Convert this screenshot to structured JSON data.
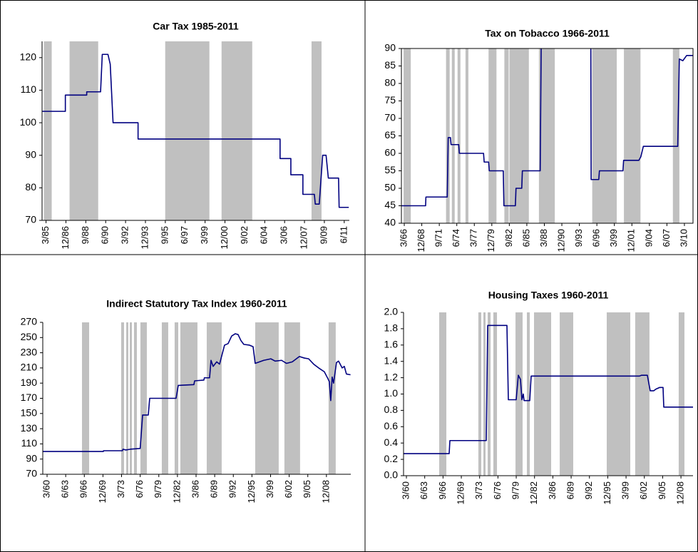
{
  "chart_data": [
    {
      "type": "line",
      "title": "Car Tax 1985-2011",
      "frame": false,
      "shade_color": "#c0c0c0",
      "xlim": [
        1984.9,
        2011.95
      ],
      "ylim": [
        70,
        125
      ],
      "yticks": [
        70,
        80,
        90,
        100,
        110,
        120
      ],
      "xticks": [
        {
          "value": 1985.25,
          "label": "3/85"
        },
        {
          "value": 1987,
          "label": "12/86"
        },
        {
          "value": 1988.75,
          "label": "9/88"
        },
        {
          "value": 1990.5,
          "label": "6/90"
        },
        {
          "value": 1992.25,
          "label": "3/92"
        },
        {
          "value": 1994,
          "label": "12/93"
        },
        {
          "value": 1995.75,
          "label": "9/95"
        },
        {
          "value": 1997.5,
          "label": "6/97"
        },
        {
          "value": 1999.25,
          "label": "3/99"
        },
        {
          "value": 2001,
          "label": "12/00"
        },
        {
          "value": 2002.75,
          "label": "9/02"
        },
        {
          "value": 2004.5,
          "label": "6/04"
        },
        {
          "value": 2006.25,
          "label": "3/06"
        },
        {
          "value": 2008,
          "label": "12/07"
        },
        {
          "value": 2009.75,
          "label": "9/09"
        },
        {
          "value": 2011.5,
          "label": "6/11"
        }
      ],
      "shaded": [
        [
          1985.06,
          1985.75
        ],
        [
          1987.32,
          1989.84
        ],
        [
          1995.74,
          1999.63
        ],
        [
          2000.7,
          2003.4
        ],
        [
          2008.62,
          2009.5
        ]
      ],
      "series": [
        {
          "color": "#000080",
          "x": [
            1984.9,
            1986.95,
            1986.95,
            1988.83,
            1988.83,
            1990.05,
            1990.2,
            1990.7,
            1990.9,
            1991.15,
            1993.35,
            1993.35,
            2005.85,
            2005.85,
            2006.8,
            2006.8,
            2007.86,
            2007.86,
            2008.87,
            2008.95,
            2009.3,
            2009.6,
            2009.9,
            2010.1,
            2011.0,
            2011.05,
            2011.9
          ],
          "values": [
            103.5,
            103.5,
            108.5,
            108.5,
            109.5,
            109.5,
            121,
            121,
            118,
            100,
            100,
            95,
            95,
            89,
            89,
            84,
            84,
            78,
            78,
            75,
            75,
            90,
            90,
            83,
            83,
            74,
            74
          ]
        }
      ]
    },
    {
      "type": "line",
      "title": "Tax on Tobacco 1966-2011",
      "frame": true,
      "shade_color": "#c0c0c0",
      "xlim": [
        1965.8,
        2011.6
      ],
      "ylim": [
        40,
        90
      ],
      "yticks": [
        40,
        45,
        50,
        55,
        60,
        65,
        70,
        75,
        80,
        85,
        90
      ],
      "xticks": [
        {
          "value": 1966.25,
          "label": "3/66"
        },
        {
          "value": 1969,
          "label": "12/68"
        },
        {
          "value": 1971.75,
          "label": "9/71"
        },
        {
          "value": 1974.5,
          "label": "6/74"
        },
        {
          "value": 1977.25,
          "label": "3/77"
        },
        {
          "value": 1980,
          "label": "12/79"
        },
        {
          "value": 1982.75,
          "label": "9/82"
        },
        {
          "value": 1985.5,
          "label": "6/85"
        },
        {
          "value": 1988.25,
          "label": "3/88"
        },
        {
          "value": 1991,
          "label": "12/90"
        },
        {
          "value": 1993.75,
          "label": "9/93"
        },
        {
          "value": 1996.5,
          "label": "6/96"
        },
        {
          "value": 1999.25,
          "label": "3/99"
        },
        {
          "value": 2002,
          "label": "12/01"
        },
        {
          "value": 2004.75,
          "label": "9/04"
        },
        {
          "value": 2007.5,
          "label": "6/07"
        },
        {
          "value": 2010.25,
          "label": "3/10"
        }
      ],
      "shaded": [
        [
          1966.14,
          1967.27
        ],
        [
          1972.81,
          1973.38
        ],
        [
          1973.72,
          1974.17
        ],
        [
          1974.62,
          1975.07
        ],
        [
          1975.87,
          1976.32
        ],
        [
          1979.49,
          1980.73
        ],
        [
          1981.97,
          1982.65
        ],
        [
          1982.77,
          1985.82
        ],
        [
          1987.4,
          1989.89
        ],
        [
          1995.77,
          1999.62
        ],
        [
          2000.75,
          2003.35
        ],
        [
          2008.44,
          2009.46
        ]
      ],
      "series": [
        {
          "color": "#000080",
          "x": [
            1965.8,
            1969.6,
            1969.65,
            1973.0,
            1973.15,
            1973.5,
            1973.6,
            1974.8,
            1974.9,
            1978.7,
            1978.8,
            1979.5,
            1979.6,
            1981.8,
            1981.9,
            1983.7,
            1983.8,
            1984.7,
            1984.8,
            1987.6,
            1987.75,
            1991.5,
            1995.55,
            1995.6,
            1996.8,
            1996.9,
            2000.6,
            2000.7,
            2003.1,
            2003.4,
            2003.8,
            2009.2,
            2009.45,
            2010.0,
            2010.6,
            2011.6
          ],
          "values": [
            45,
            45,
            47.5,
            47.5,
            64.5,
            64.5,
            62.5,
            62.5,
            60,
            60,
            57.5,
            57.5,
            55,
            55,
            45,
            45,
            50,
            50,
            55,
            55,
            90,
            null,
            90,
            52.5,
            52.5,
            55,
            55,
            58,
            58,
            59,
            62,
            62,
            87,
            86.5,
            88,
            88
          ]
        }
      ]
    },
    {
      "type": "line",
      "title": "Indirect Statutory Tax Index 1960-2011",
      "frame": false,
      "shade_color": "#c0c0c0",
      "xlim": [
        1959.5,
        2013.25
      ],
      "ylim": [
        70,
        270
      ],
      "yticks": [
        70,
        90,
        110,
        130,
        150,
        170,
        190,
        210,
        230,
        250,
        270
      ],
      "xticks": [
        {
          "value": 1960.25,
          "label": "3/60"
        },
        {
          "value": 1963.5,
          "label": "6/63"
        },
        {
          "value": 1966.75,
          "label": "9/66"
        },
        {
          "value": 1970,
          "label": "12/69"
        },
        {
          "value": 1973.25,
          "label": "3/73"
        },
        {
          "value": 1976.5,
          "label": "6/76"
        },
        {
          "value": 1979.75,
          "label": "9/79"
        },
        {
          "value": 1983,
          "label": "12/82"
        },
        {
          "value": 1986.25,
          "label": "3/86"
        },
        {
          "value": 1989.5,
          "label": "6/89"
        },
        {
          "value": 1992.75,
          "label": "9/92"
        },
        {
          "value": 1996,
          "label": "12/95"
        },
        {
          "value": 1999.25,
          "label": "3/99"
        },
        {
          "value": 2002.5,
          "label": "6/02"
        },
        {
          "value": 2005.75,
          "label": "9/05"
        },
        {
          "value": 2009,
          "label": "12/08"
        }
      ],
      "shaded": [
        [
          1966.34,
          1967.59
        ],
        [
          1973.18,
          1973.68
        ],
        [
          1974.06,
          1974.43
        ],
        [
          1974.68,
          1975.05
        ],
        [
          1975.42,
          1975.92
        ],
        [
          1976.54,
          1977.66
        ],
        [
          1980.27,
          1981.39
        ],
        [
          1982.51,
          1983.14
        ],
        [
          1983.51,
          1986.49
        ],
        [
          1988.11,
          1990.72
        ],
        [
          1996.57,
          2000.67
        ],
        [
          2001.67,
          2004.4
        ],
        [
          2009.38,
          2010.62
        ]
      ],
      "series": [
        {
          "color": "#000080",
          "x": [
            1959.5,
            1970.07,
            1970.1,
            1973.4,
            1973.5,
            1974.0,
            1974.8,
            1976.5,
            1976.92,
            1977.91,
            1978.16,
            1982.76,
            1983.14,
            1985.87,
            1986.0,
            1987.61,
            1987.7,
            1988.61,
            1988.86,
            1989.23,
            1989.85,
            1990.35,
            1991.22,
            1991.84,
            1992.46,
            1993.09,
            1993.58,
            1994.08,
            1994.58,
            1995.57,
            1996.2,
            1996.57,
            1998.06,
            1999.3,
            2000.05,
            2001.17,
            2002.04,
            2003.04,
            2004.28,
            2005.15,
            2005.9,
            2006.77,
            2007.64,
            2008.63,
            2009.25,
            2009.5,
            2009.75,
            2010.0,
            2010.25,
            2010.75,
            2011.12,
            2011.74,
            2012.12,
            2012.49,
            2013.2
          ],
          "values": [
            100,
            100,
            101,
            101,
            103,
            102,
            103,
            104,
            148,
            148,
            170,
            170,
            187,
            188,
            193,
            194,
            197,
            197,
            220,
            212,
            218,
            215,
            240,
            242,
            252,
            255,
            254,
            246,
            241,
            240,
            238,
            216,
            220,
            222,
            219,
            220,
            216,
            218,
            225,
            223,
            222,
            215,
            210,
            205,
            196,
            192,
            167,
            198,
            190,
            217,
            219,
            210,
            212,
            202,
            201
          ]
        }
      ]
    },
    {
      "type": "line",
      "title": "Housing Taxes 1960-2011",
      "frame": false,
      "shade_color": "#c0c0c0",
      "xlim": [
        1959.74,
        2011.14
      ],
      "ylim": [
        0,
        2
      ],
      "yticks": [
        {
          "value": 0,
          "label": "0.0"
        },
        0.2,
        0.4,
        0.6,
        0.8,
        {
          "value": 1,
          "label": "1.0"
        },
        1.2,
        1.4,
        1.6,
        1.8,
        {
          "value": 2,
          "label": "2.0"
        }
      ],
      "xticks": [
        {
          "value": 1960.25,
          "label": "3/60"
        },
        {
          "value": 1963.5,
          "label": "6/63"
        },
        {
          "value": 1966.75,
          "label": "9/66"
        },
        {
          "value": 1970,
          "label": "12/69"
        },
        {
          "value": 1973.25,
          "label": "3/73"
        },
        {
          "value": 1976.5,
          "label": "6/76"
        },
        {
          "value": 1979.75,
          "label": "9/79"
        },
        {
          "value": 1983,
          "label": "12/82"
        },
        {
          "value": 1986.25,
          "label": "3/86"
        },
        {
          "value": 1989.5,
          "label": "6/89"
        },
        {
          "value": 1992.75,
          "label": "9/92"
        },
        {
          "value": 1996,
          "label": "12/95"
        },
        {
          "value": 1999.25,
          "label": "3/99"
        },
        {
          "value": 2002.5,
          "label": "6/02"
        },
        {
          "value": 2005.75,
          "label": "9/05"
        },
        {
          "value": 2009,
          "label": "12/08"
        }
      ],
      "shaded": [
        [
          1966.07,
          1967.34
        ],
        [
          1973.03,
          1973.54
        ],
        [
          1973.92,
          1974.3
        ],
        [
          1974.68,
          1975.19
        ],
        [
          1975.69,
          1976.33
        ],
        [
          1979.62,
          1980.88
        ],
        [
          1981.64,
          1982.15
        ],
        [
          1982.91,
          1985.95
        ],
        [
          1987.47,
          1989.87
        ],
        [
          1995.82,
          2000.0
        ],
        [
          2000.88,
          2003.41
        ],
        [
          2008.6,
          2009.62
        ]
      ],
      "series": [
        {
          "color": "#000080",
          "x": [
            1959.74,
            1967.84,
            1967.97,
            1974.43,
            1974.68,
            1978.1,
            1978.35,
            1979.74,
            1980.12,
            1980.5,
            1980.76,
            1981.0,
            1981.14,
            1982.15,
            1982.4,
            2001.64,
            2002.0,
            2003.03,
            2003.54,
            2004.17,
            2004.55,
            2005.19,
            2005.82,
            2005.95,
            2011.14
          ],
          "values": [
            0.27,
            0.27,
            0.43,
            0.43,
            1.84,
            1.84,
            0.93,
            0.93,
            1.23,
            1.18,
            0.93,
            1.0,
            0.92,
            0.92,
            1.22,
            1.22,
            1.23,
            1.23,
            1.04,
            1.04,
            1.06,
            1.08,
            1.08,
            0.84,
            0.84
          ]
        }
      ]
    }
  ]
}
